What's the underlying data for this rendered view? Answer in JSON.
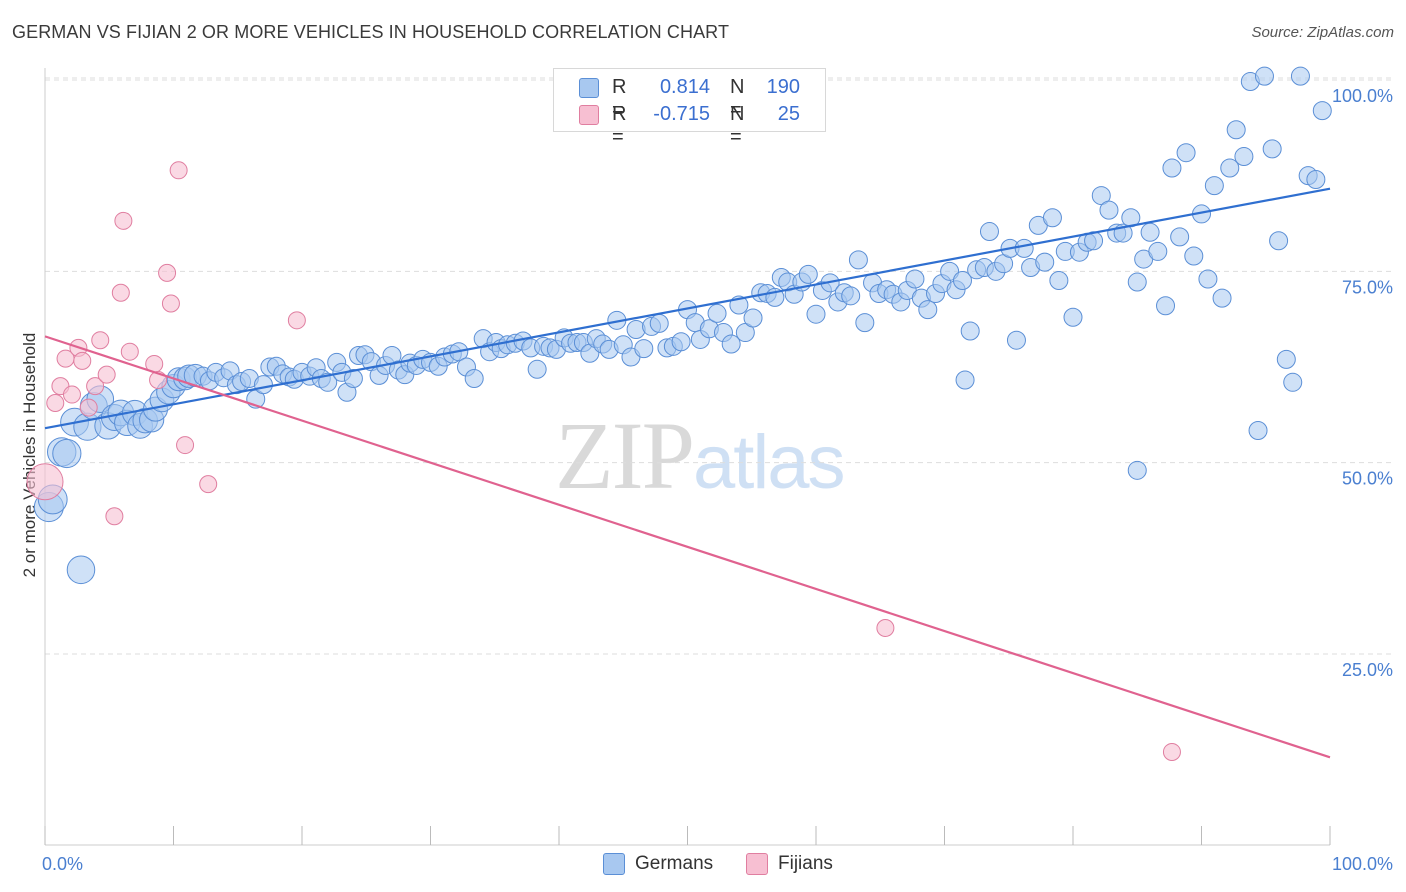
{
  "header": {
    "title": "GERMAN VS FIJIAN 2 OR MORE VEHICLES IN HOUSEHOLD CORRELATION CHART",
    "source": "Source: ZipAtlas.com"
  },
  "watermark": {
    "zip": "ZIP",
    "atlas": "atlas"
  },
  "legend": {
    "r_label": "R =",
    "n_label": "N =",
    "rows": [
      {
        "r": "0.814",
        "n": "190"
      },
      {
        "r": "-0.715",
        "n": "25"
      }
    ]
  },
  "colors": {
    "germans_fill": "#a8c8f0",
    "germans_stroke": "#5b8fd6",
    "germans_line": "#2f6fd0",
    "fijians_fill": "#f7bfd2",
    "fijians_stroke": "#e07ea0",
    "fijians_line": "#e0628f",
    "tick_text": "#4a7fd0",
    "grid": "#dddddd"
  },
  "chart_data": {
    "type": "scatter",
    "title": "GERMAN VS FIJIAN 2 OR MORE VEHICLES IN HOUSEHOLD CORRELATION CHART",
    "xlabel": "",
    "ylabel": "2 or more Vehicles in Household",
    "xlim": [
      0,
      100
    ],
    "ylim": [
      0,
      102
    ],
    "x_tick_labels": [
      "0.0%",
      "100.0%"
    ],
    "y_ticks": [
      25,
      50,
      75,
      100
    ],
    "y_tick_labels": [
      "25.0%",
      "50.0%",
      "75.0%",
      "100.0%"
    ],
    "grid": true,
    "legend_position": "bottom",
    "series": [
      {
        "name": "Germans",
        "r": 0.814,
        "n": 190,
        "trend": [
          [
            0,
            54.5
          ],
          [
            100,
            85.8
          ]
        ],
        "points": [
          [
            0.3,
            44.2
          ],
          [
            0.6,
            45.2
          ],
          [
            1.3,
            51.4
          ],
          [
            1.7,
            51.2
          ],
          [
            2.3,
            55.3
          ],
          [
            2.8,
            36
          ],
          [
            3.3,
            54.7
          ],
          [
            3.8,
            57.4
          ],
          [
            4.3,
            58.3
          ],
          [
            4.9,
            54.8
          ],
          [
            5.4,
            55.9
          ],
          [
            5.9,
            56.5
          ],
          [
            6.4,
            55.2
          ],
          [
            7.0,
            56.5
          ],
          [
            7.4,
            54.8
          ],
          [
            7.8,
            55.5
          ],
          [
            8.3,
            55.6
          ],
          [
            8.6,
            57.0
          ],
          [
            9.1,
            58.2
          ],
          [
            9.6,
            59.2
          ],
          [
            10.0,
            60.0
          ],
          [
            10.4,
            60.9
          ],
          [
            10.9,
            61.0
          ],
          [
            11.2,
            61.3
          ],
          [
            11.7,
            61.4
          ],
          [
            12.3,
            61.3
          ],
          [
            12.8,
            60.7
          ],
          [
            13.3,
            61.8
          ],
          [
            13.9,
            61.1
          ],
          [
            14.4,
            62.0
          ],
          [
            14.9,
            60.2
          ],
          [
            15.3,
            60.6
          ],
          [
            15.9,
            61.0
          ],
          [
            16.4,
            58.3
          ],
          [
            17.0,
            60.2
          ],
          [
            17.5,
            62.5
          ],
          [
            18.0,
            62.6
          ],
          [
            18.5,
            61.6
          ],
          [
            19.0,
            61.2
          ],
          [
            19.4,
            60.9
          ],
          [
            20.0,
            61.8
          ],
          [
            20.6,
            61.3
          ],
          [
            21.1,
            62.4
          ],
          [
            21.5,
            61.0
          ],
          [
            22.0,
            60.5
          ],
          [
            22.7,
            63.1
          ],
          [
            23.1,
            61.8
          ],
          [
            23.5,
            59.2
          ],
          [
            24.0,
            61.0
          ],
          [
            24.4,
            64.0
          ],
          [
            24.9,
            64.1
          ],
          [
            25.4,
            63.2
          ],
          [
            26.0,
            61.4
          ],
          [
            26.5,
            62.7
          ],
          [
            27.0,
            64.0
          ],
          [
            27.5,
            62.1
          ],
          [
            28.0,
            61.5
          ],
          [
            28.4,
            63.0
          ],
          [
            28.9,
            62.7
          ],
          [
            29.4,
            63.5
          ],
          [
            30.0,
            63.1
          ],
          [
            30.6,
            62.6
          ],
          [
            31.1,
            63.8
          ],
          [
            31.7,
            64.2
          ],
          [
            32.2,
            64.5
          ],
          [
            32.8,
            62.5
          ],
          [
            33.4,
            61.0
          ],
          [
            34.1,
            66.2
          ],
          [
            34.6,
            64.5
          ],
          [
            35.1,
            65.7
          ],
          [
            35.5,
            64.9
          ],
          [
            36.0,
            65.4
          ],
          [
            36.6,
            65.6
          ],
          [
            37.2,
            65.9
          ],
          [
            37.8,
            65.0
          ],
          [
            38.3,
            62.2
          ],
          [
            38.8,
            65.2
          ],
          [
            39.3,
            65.0
          ],
          [
            39.8,
            64.8
          ],
          [
            40.4,
            66.3
          ],
          [
            40.9,
            65.6
          ],
          [
            41.4,
            65.7
          ],
          [
            41.9,
            65.7
          ],
          [
            42.4,
            64.3
          ],
          [
            42.9,
            66.2
          ],
          [
            43.4,
            65.5
          ],
          [
            43.9,
            64.8
          ],
          [
            44.5,
            68.6
          ],
          [
            45.0,
            65.4
          ],
          [
            45.6,
            63.8
          ],
          [
            46.0,
            67.4
          ],
          [
            46.6,
            64.9
          ],
          [
            47.2,
            67.8
          ],
          [
            47.8,
            68.2
          ],
          [
            48.4,
            65.0
          ],
          [
            48.9,
            65.2
          ],
          [
            49.5,
            65.8
          ],
          [
            50.0,
            70.0
          ],
          [
            50.6,
            68.3
          ],
          [
            51.0,
            66.1
          ],
          [
            51.7,
            67.5
          ],
          [
            52.3,
            69.5
          ],
          [
            52.8,
            67.0
          ],
          [
            53.4,
            65.5
          ],
          [
            54.0,
            70.6
          ],
          [
            54.5,
            67.0
          ],
          [
            55.1,
            68.9
          ],
          [
            55.7,
            72.2
          ],
          [
            56.2,
            72.1
          ],
          [
            56.8,
            71.6
          ],
          [
            57.3,
            74.2
          ],
          [
            57.8,
            73.6
          ],
          [
            58.3,
            72.0
          ],
          [
            58.9,
            73.6
          ],
          [
            59.4,
            74.6
          ],
          [
            60.0,
            69.4
          ],
          [
            60.5,
            72.5
          ],
          [
            61.1,
            73.5
          ],
          [
            61.7,
            71.0
          ],
          [
            62.2,
            72.2
          ],
          [
            62.7,
            71.8
          ],
          [
            63.3,
            76.5
          ],
          [
            63.8,
            68.3
          ],
          [
            64.4,
            73.5
          ],
          [
            64.9,
            72.1
          ],
          [
            65.5,
            72.6
          ],
          [
            66.0,
            72.0
          ],
          [
            66.6,
            71.0
          ],
          [
            67.1,
            72.5
          ],
          [
            67.7,
            74.0
          ],
          [
            68.2,
            71.5
          ],
          [
            68.7,
            70.0
          ],
          [
            69.3,
            72.1
          ],
          [
            69.8,
            73.4
          ],
          [
            70.4,
            75.0
          ],
          [
            70.9,
            72.6
          ],
          [
            71.4,
            73.8
          ],
          [
            72.0,
            67.2
          ],
          [
            72.5,
            75.2
          ],
          [
            73.1,
            75.5
          ],
          [
            73.5,
            80.2
          ],
          [
            74.0,
            75.0
          ],
          [
            74.6,
            76.0
          ],
          [
            75.1,
            78.0
          ],
          [
            75.6,
            66.0
          ],
          [
            76.2,
            78.0
          ],
          [
            76.7,
            75.5
          ],
          [
            77.3,
            81.0
          ],
          [
            77.8,
            76.2
          ],
          [
            78.4,
            82.0
          ],
          [
            78.9,
            73.8
          ],
          [
            79.4,
            77.6
          ],
          [
            80.0,
            69.0
          ],
          [
            80.5,
            77.5
          ],
          [
            81.1,
            78.8
          ],
          [
            81.6,
            79.0
          ],
          [
            82.2,
            84.9
          ],
          [
            82.8,
            83.0
          ],
          [
            83.4,
            80.0
          ],
          [
            83.9,
            80.0
          ],
          [
            84.5,
            82.0
          ],
          [
            85.0,
            73.6
          ],
          [
            85.5,
            76.6
          ],
          [
            86.0,
            80.1
          ],
          [
            86.6,
            77.6
          ],
          [
            87.2,
            70.5
          ],
          [
            87.7,
            88.5
          ],
          [
            88.3,
            79.5
          ],
          [
            88.8,
            90.5
          ],
          [
            89.4,
            77.0
          ],
          [
            90.0,
            82.5
          ],
          [
            90.5,
            74.0
          ],
          [
            91.0,
            86.2
          ],
          [
            91.6,
            71.5
          ],
          [
            92.2,
            88.5
          ],
          [
            92.7,
            93.5
          ],
          [
            93.3,
            90.0
          ],
          [
            93.8,
            99.8
          ],
          [
            94.4,
            54.2
          ],
          [
            94.9,
            100.5
          ],
          [
            95.5,
            91.0
          ],
          [
            96.0,
            79.0
          ],
          [
            96.6,
            63.5
          ],
          [
            97.1,
            60.5
          ],
          [
            97.7,
            100.5
          ],
          [
            98.3,
            87.5
          ],
          [
            98.9,
            87.0
          ],
          [
            99.4,
            96.0
          ],
          [
            85.0,
            49.0
          ],
          [
            71.6,
            60.8
          ]
        ]
      },
      {
        "name": "Fijians",
        "r": -0.715,
        "n": 25,
        "trend": [
          [
            0,
            66.5
          ],
          [
            100,
            11.5
          ]
        ],
        "points": [
          [
            0.0,
            47.5
          ],
          [
            0.8,
            57.8
          ],
          [
            1.2,
            60.0
          ],
          [
            1.6,
            63.6
          ],
          [
            2.1,
            58.9
          ],
          [
            2.6,
            65.0
          ],
          [
            2.9,
            63.3
          ],
          [
            3.4,
            57.2
          ],
          [
            3.9,
            60.0
          ],
          [
            4.3,
            66.0
          ],
          [
            4.8,
            61.5
          ],
          [
            5.4,
            43.0
          ],
          [
            5.9,
            72.2
          ],
          [
            6.1,
            81.6
          ],
          [
            6.6,
            64.5
          ],
          [
            8.5,
            62.9
          ],
          [
            8.8,
            60.8
          ],
          [
            9.5,
            74.8
          ],
          [
            9.8,
            70.8
          ],
          [
            10.4,
            88.2
          ],
          [
            10.9,
            52.3
          ],
          [
            12.7,
            47.2
          ],
          [
            19.6,
            68.6
          ],
          [
            65.4,
            28.4
          ],
          [
            87.7,
            12.2
          ]
        ]
      }
    ]
  }
}
